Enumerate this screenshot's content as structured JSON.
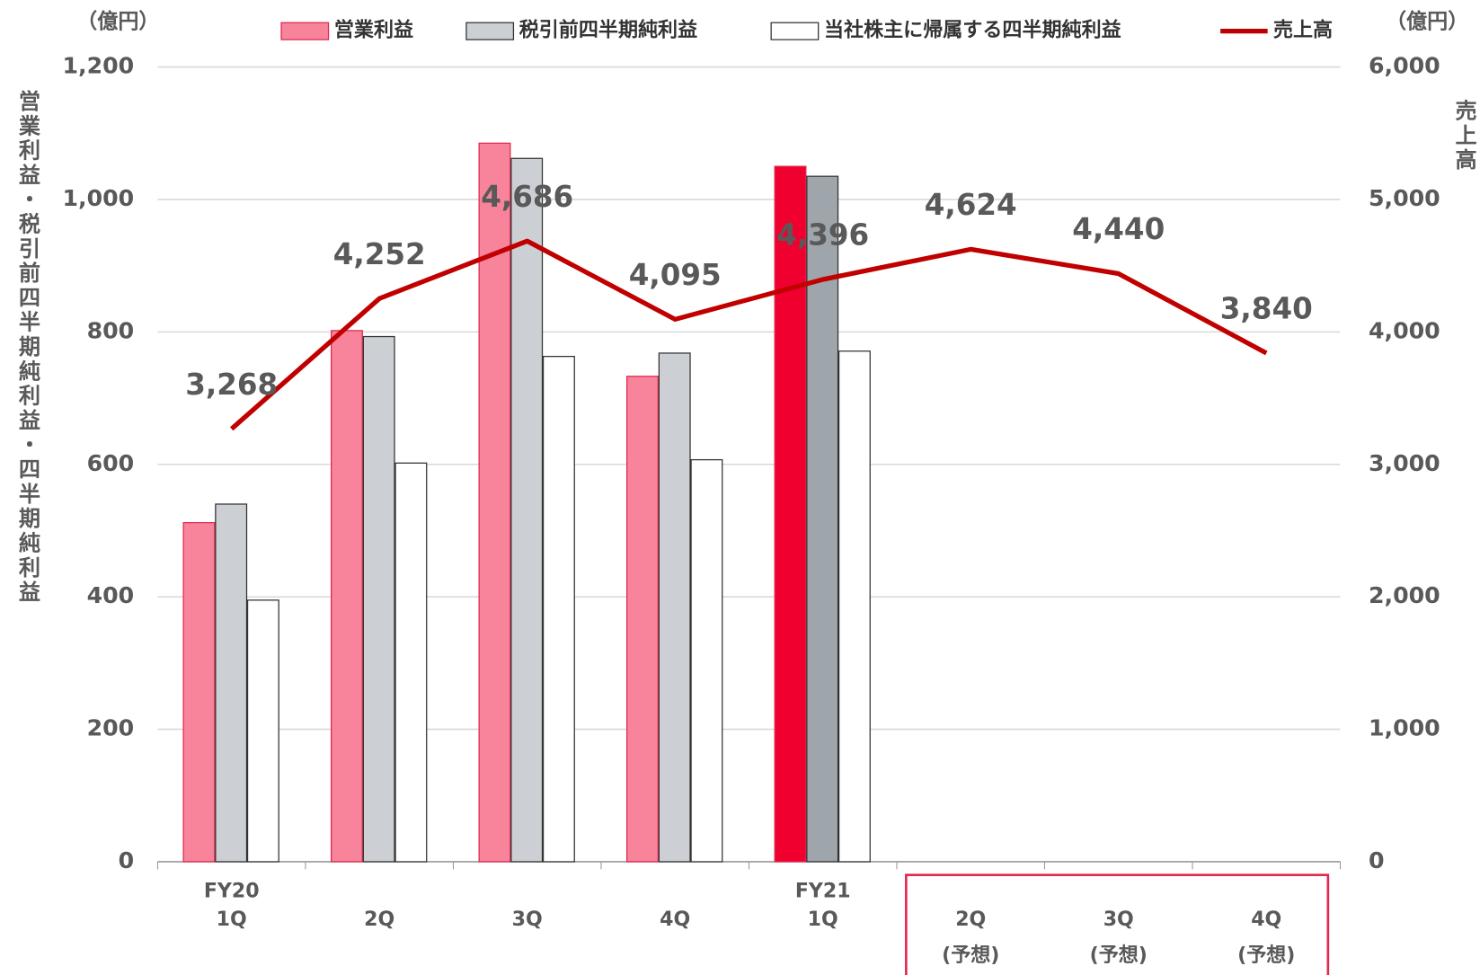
{
  "chart_data": {
    "type": "bar",
    "y_label_unit": "（億円）",
    "y2_label_unit": "（億円）",
    "y_label": "営業利益・税引前四半期純利益・四半期純利益",
    "y2_label": "売上高",
    "categories": [
      [
        "FY20",
        "1Q"
      ],
      [
        "2Q"
      ],
      [
        "3Q"
      ],
      [
        "4Q"
      ],
      [
        "FY21",
        "1Q"
      ],
      [
        "2Q",
        "(予想)"
      ],
      [
        "3Q",
        "(予想)"
      ],
      [
        "4Q",
        "(予想)"
      ]
    ],
    "series": [
      {
        "name": "営業利益",
        "type": "bar",
        "color": "#f7849a",
        "stroke": "#e0284f",
        "colors": [
          "#f7849a",
          "#f7849a",
          "#f7849a",
          "#f7849a",
          "#f0002e",
          null,
          null,
          null
        ],
        "values": [
          512,
          802,
          1085,
          733,
          1050,
          null,
          null,
          null
        ]
      },
      {
        "name": "税引前四半期純利益",
        "type": "bar",
        "color": "#ccd0d4",
        "stroke": "#333333",
        "colors": [
          "#ccd0d4",
          "#ccd0d4",
          "#ccd0d4",
          "#ccd0d4",
          "#9ea5ab",
          null,
          null,
          null
        ],
        "values": [
          540,
          793,
          1062,
          768,
          1035,
          null,
          null,
          null
        ]
      },
      {
        "name": "当社株主に帰属する四半期純利益",
        "type": "bar",
        "color": "#ffffff",
        "stroke": "#333333",
        "values": [
          395,
          602,
          763,
          607,
          771,
          null,
          null,
          null
        ]
      },
      {
        "name": "売上高",
        "type": "line",
        "axis": "y2",
        "color": "#c00000",
        "values": [
          3268,
          4252,
          4686,
          4095,
          4396,
          4624,
          4440,
          3840
        ],
        "value_labels": [
          "3,268",
          "4,252",
          "4,686",
          "4,095",
          "4,396",
          "4,624",
          "4,440",
          "3,840"
        ]
      }
    ],
    "ylim": [
      0,
      1200
    ],
    "yticks": [
      0,
      200,
      400,
      600,
      800,
      {
        "value": 1000,
        "label": "1,000"
      },
      {
        "value": 1200,
        "label": "1,200"
      }
    ],
    "y2lim": [
      0,
      6000
    ],
    "y2ticks": [
      0,
      {
        "value": 1000,
        "label": "1,000"
      },
      {
        "value": 2000,
        "label": "2,000"
      },
      {
        "value": 3000,
        "label": "3,000"
      },
      {
        "value": 4000,
        "label": "4,000"
      },
      {
        "value": 5000,
        "label": "5,000"
      },
      {
        "value": 6000,
        "label": "6,000"
      }
    ],
    "grid": true
  }
}
